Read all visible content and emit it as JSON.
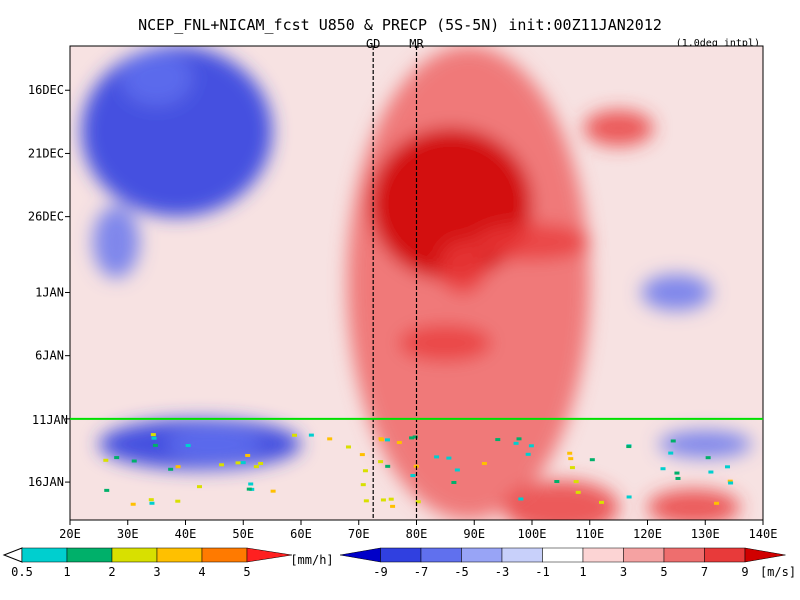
{
  "chart_data": {
    "type": "heatmap",
    "title": "NCEP_FNL+NICAM_fcst U850 & PRECP (5S-5N) init:00Z11JAN2012",
    "subtitle": "(1.0deg intpl)",
    "x_ticks": [
      "20E",
      "30E",
      "40E",
      "50E",
      "60E",
      "70E",
      "80E",
      "90E",
      "100E",
      "110E",
      "120E",
      "130E",
      "140E"
    ],
    "x_values": [
      20,
      30,
      40,
      50,
      60,
      70,
      80,
      90,
      100,
      110,
      120,
      130,
      140
    ],
    "xlim": [
      20,
      140
    ],
    "y_ticks": [
      "16DEC",
      "21DEC",
      "26DEC",
      "1JAN",
      "6JAN",
      "11JAN",
      "16JAN"
    ],
    "y_values": [
      0,
      5,
      10,
      16,
      21,
      26,
      31
    ],
    "ylim": [
      -3.5,
      34
    ],
    "markers": [
      {
        "label": "GD",
        "lon": 72.5
      },
      {
        "label": "MR",
        "lon": 80
      }
    ],
    "init_line_label": "11JAN",
    "init_line_day": 26,
    "precip_legend": {
      "unit": "[mm/h]",
      "labels": [
        "0.5",
        "1",
        "2",
        "3",
        "4",
        "5"
      ],
      "colors": [
        "#00cfcf",
        "#00b06a",
        "#d8e000",
        "#ffc000",
        "#ff7a00",
        "#ff2020"
      ]
    },
    "u850_legend": {
      "unit": "[m/s]",
      "labels": [
        "-9",
        "-7",
        "-5",
        "-3",
        "-1",
        "1",
        "3",
        "5",
        "7",
        "9"
      ],
      "colors": [
        "#0000c8",
        "#3040e0",
        "#6070ee",
        "#98a4f6",
        "#c8d0fa",
        "#ffffff",
        "#fcd4d4",
        "#f5a2a2",
        "#ee6e6e",
        "#e83a3a",
        "#d00000"
      ]
    },
    "u850_regions": [
      {
        "kind": "westerly",
        "intensity": 2,
        "lon": [
          68,
          110
        ],
        "days": [
          -3.5,
          34
        ]
      },
      {
        "kind": "westerly",
        "intensity": 4,
        "lon": [
          72,
          100
        ],
        "days": [
          3,
          15
        ]
      },
      {
        "kind": "easterly",
        "intensity": 3,
        "lon": [
          22,
          55
        ],
        "days": [
          -3.5,
          10
        ]
      },
      {
        "kind": "easterly",
        "intensity": 3,
        "lon": [
          25,
          60
        ],
        "days": [
          26,
          30
        ]
      }
    ]
  }
}
